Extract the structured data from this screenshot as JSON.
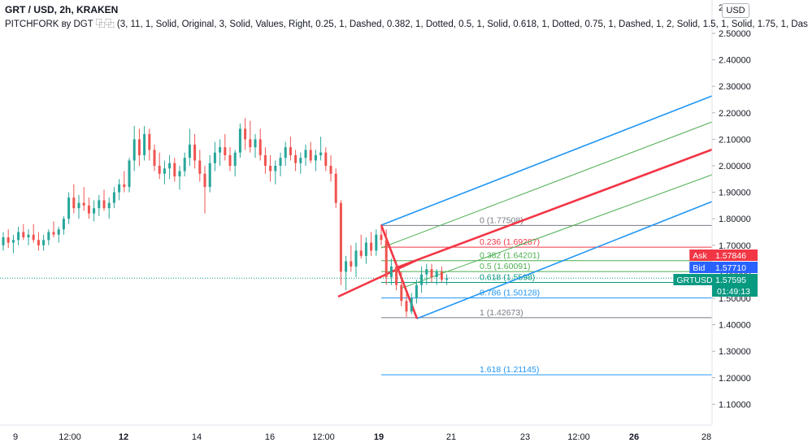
{
  "header": {
    "title": "GRT / USD, 2h, KRAKEN",
    "study": "PITCHFORK ву DGT ⿻⿻ (3, 11, 1, Solid, Original, 3, Solid, Values, Right, 0.25, 1, Dashed, 0.382, 1, Dotted, 0.5, 1, Solid, 0.618, 1, Dotted, 0.75, 1, Dashed, 1, 2, Solid, 1.5, 1, Solid, 1.75, 1, Das"
  },
  "currency_button": "USD",
  "chart_data": {
    "type": "candlestick",
    "symbol": "GRTUSD",
    "y_axis": {
      "range": [
        1.03,
        2.61
      ],
      "ticks": [
        "1.10000",
        "1.20000",
        "1.30000",
        "1.40000",
        "1.50000",
        "1.60000",
        "1.70000",
        "1.80000",
        "1.90000",
        "2.00000",
        "2.10000",
        "2.20000",
        "2.30000",
        "2.40000",
        "2.50000"
      ],
      "top_tick_partial": "2."
    },
    "x_axis": {
      "ticks": [
        {
          "label": "9",
          "bold": false
        },
        {
          "label": "12:00",
          "bold": false
        },
        {
          "label": "12",
          "bold": true
        },
        {
          "label": "14",
          "bold": false
        },
        {
          "label": "16",
          "bold": false
        },
        {
          "label": "12:00",
          "bold": false
        },
        {
          "label": "19",
          "bold": true
        },
        {
          "label": "21",
          "bold": false
        },
        {
          "label": "23",
          "bold": false
        },
        {
          "label": "12:00",
          "bold": false
        },
        {
          "label": "26",
          "bold": true
        },
        {
          "label": "28",
          "bold": false
        }
      ]
    },
    "colors": {
      "up": "#26a69a",
      "down": "#ef5350",
      "pitchfork": "#2196f3",
      "median": "#f23645",
      "inner": "#4caf50"
    },
    "ohlc": [
      [
        1.7,
        1.75,
        1.68,
        1.73
      ],
      [
        1.73,
        1.76,
        1.69,
        1.71
      ],
      [
        1.71,
        1.74,
        1.67,
        1.72
      ],
      [
        1.72,
        1.77,
        1.7,
        1.75
      ],
      [
        1.75,
        1.78,
        1.72,
        1.73
      ],
      [
        1.73,
        1.76,
        1.7,
        1.74
      ],
      [
        1.74,
        1.78,
        1.71,
        1.72
      ],
      [
        1.72,
        1.75,
        1.68,
        1.7
      ],
      [
        1.7,
        1.74,
        1.68,
        1.72
      ],
      [
        1.72,
        1.76,
        1.7,
        1.75
      ],
      [
        1.75,
        1.79,
        1.73,
        1.74
      ],
      [
        1.74,
        1.77,
        1.71,
        1.76
      ],
      [
        1.76,
        1.81,
        1.74,
        1.8
      ],
      [
        1.8,
        1.9,
        1.78,
        1.88
      ],
      [
        1.88,
        1.93,
        1.82,
        1.84
      ],
      [
        1.84,
        1.89,
        1.8,
        1.86
      ],
      [
        1.86,
        1.92,
        1.83,
        1.85
      ],
      [
        1.85,
        1.88,
        1.8,
        1.82
      ],
      [
        1.82,
        1.87,
        1.79,
        1.84
      ],
      [
        1.84,
        1.89,
        1.81,
        1.87
      ],
      [
        1.87,
        1.91,
        1.83,
        1.84
      ],
      [
        1.84,
        1.88,
        1.8,
        1.86
      ],
      [
        1.86,
        1.92,
        1.84,
        1.9
      ],
      [
        1.9,
        1.95,
        1.87,
        1.93
      ],
      [
        1.93,
        1.98,
        1.9,
        1.92
      ],
      [
        1.92,
        2.03,
        1.9,
        2.02
      ],
      [
        2.02,
        2.15,
        1.98,
        2.1
      ],
      [
        2.1,
        2.14,
        2.0,
        2.04
      ],
      [
        2.04,
        2.15,
        2.02,
        2.12
      ],
      [
        2.12,
        2.14,
        2.02,
        2.06
      ],
      [
        2.06,
        2.08,
        1.98,
        2.0
      ],
      [
        2.0,
        2.05,
        1.95,
        1.97
      ],
      [
        1.97,
        2.02,
        1.93,
        1.99
      ],
      [
        1.99,
        2.04,
        1.95,
        2.01
      ],
      [
        2.01,
        2.03,
        1.94,
        1.96
      ],
      [
        1.96,
        2.0,
        1.91,
        1.98
      ],
      [
        1.98,
        2.05,
        1.96,
        2.03
      ],
      [
        2.03,
        2.14,
        2.0,
        2.08
      ],
      [
        2.08,
        2.12,
        1.99,
        2.02
      ],
      [
        2.02,
        2.06,
        1.94,
        1.97
      ],
      [
        1.97,
        2.0,
        1.82,
        1.92
      ],
      [
        1.92,
        2.04,
        1.9,
        2.01
      ],
      [
        2.01,
        2.09,
        1.98,
        2.05
      ],
      [
        2.05,
        2.1,
        2.0,
        2.07
      ],
      [
        2.07,
        2.12,
        2.02,
        2.04
      ],
      [
        2.04,
        2.07,
        1.98,
        2.0
      ],
      [
        2.0,
        2.06,
        1.96,
        2.05
      ],
      [
        2.05,
        2.16,
        2.03,
        2.14
      ],
      [
        2.14,
        2.18,
        2.06,
        2.1
      ],
      [
        2.1,
        2.17,
        2.05,
        2.07
      ],
      [
        2.07,
        2.12,
        2.03,
        2.1
      ],
      [
        2.1,
        2.14,
        2.02,
        2.04
      ],
      [
        2.04,
        2.07,
        1.97,
        2.0
      ],
      [
        2.0,
        2.04,
        1.94,
        1.98
      ],
      [
        1.98,
        2.02,
        1.93,
        2.0
      ],
      [
        2.0,
        2.05,
        1.96,
        2.03
      ],
      [
        2.03,
        2.09,
        2.0,
        2.07
      ],
      [
        2.07,
        2.11,
        2.02,
        2.04
      ],
      [
        2.04,
        2.06,
        1.98,
        2.01
      ],
      [
        2.01,
        2.05,
        1.97,
        2.03
      ],
      [
        2.03,
        2.08,
        2.0,
        2.06
      ],
      [
        2.06,
        2.09,
        2.01,
        2.02
      ],
      [
        2.02,
        2.06,
        1.98,
        2.04
      ],
      [
        2.04,
        2.11,
        2.02,
        2.05
      ],
      [
        2.05,
        2.07,
        1.98,
        2.0
      ],
      [
        2.0,
        2.04,
        1.94,
        1.97
      ],
      [
        1.97,
        1.99,
        1.84,
        1.86
      ],
      [
        1.86,
        1.87,
        1.55,
        1.6
      ],
      [
        1.6,
        1.66,
        1.53,
        1.64
      ],
      [
        1.64,
        1.7,
        1.6,
        1.62
      ],
      [
        1.62,
        1.71,
        1.58,
        1.68
      ],
      [
        1.68,
        1.74,
        1.65,
        1.66
      ],
      [
        1.66,
        1.73,
        1.63,
        1.71
      ],
      [
        1.71,
        1.75,
        1.66,
        1.68
      ],
      [
        1.68,
        1.76,
        1.66,
        1.74
      ],
      [
        1.74,
        1.78,
        1.7,
        1.72
      ],
      [
        1.72,
        1.76,
        1.55,
        1.58
      ],
      [
        1.58,
        1.65,
        1.55,
        1.62
      ],
      [
        1.62,
        1.64,
        1.53,
        1.55
      ],
      [
        1.55,
        1.6,
        1.47,
        1.49
      ],
      [
        1.49,
        1.52,
        1.43,
        1.45
      ],
      [
        1.45,
        1.52,
        1.44,
        1.5
      ],
      [
        1.5,
        1.57,
        1.48,
        1.55
      ],
      [
        1.55,
        1.62,
        1.52,
        1.59
      ],
      [
        1.59,
        1.63,
        1.55,
        1.61
      ],
      [
        1.61,
        1.63,
        1.56,
        1.58
      ],
      [
        1.58,
        1.61,
        1.55,
        1.6
      ],
      [
        1.6,
        1.62,
        1.56,
        1.57
      ],
      [
        1.57,
        1.59,
        1.55,
        1.576
      ]
    ],
    "pitchfork": {
      "levels": [
        {
          "label": "0 (1.77508)",
          "price": 1.77508,
          "color": "#787b86"
        },
        {
          "label": "0.236 (1.69287)",
          "price": 1.69287,
          "color": "#f23645"
        },
        {
          "label": "0.382 (1.64201)",
          "price": 1.64201,
          "color": "#4caf50"
        },
        {
          "label": "0.5 (1.60091)",
          "price": 1.60091,
          "color": "#4caf50"
        },
        {
          "label": "0.618 (1.5598)",
          "price": 1.5598,
          "color": "#089981"
        },
        {
          "label": "0.786 (1.50128)",
          "price": 1.50128,
          "color": "#2196f3"
        },
        {
          "label": "1 (1.42673)",
          "price": 1.42673,
          "color": "#787b86"
        },
        {
          "label": "1.618 (1.21145)",
          "price": 1.21145,
          "color": "#2196f3"
        }
      ]
    },
    "price_tags": [
      {
        "name": "Ask",
        "value": "1.57846",
        "price": 1.57846,
        "color": "#f23645"
      },
      {
        "name": "Bid",
        "value": "1.57710",
        "price": 1.5771,
        "color": "#2962ff"
      },
      {
        "name": "GRTUSD",
        "value": "1.57595",
        "price": 1.57595,
        "color": "#089981",
        "countdown": "01:49:13"
      }
    ]
  }
}
